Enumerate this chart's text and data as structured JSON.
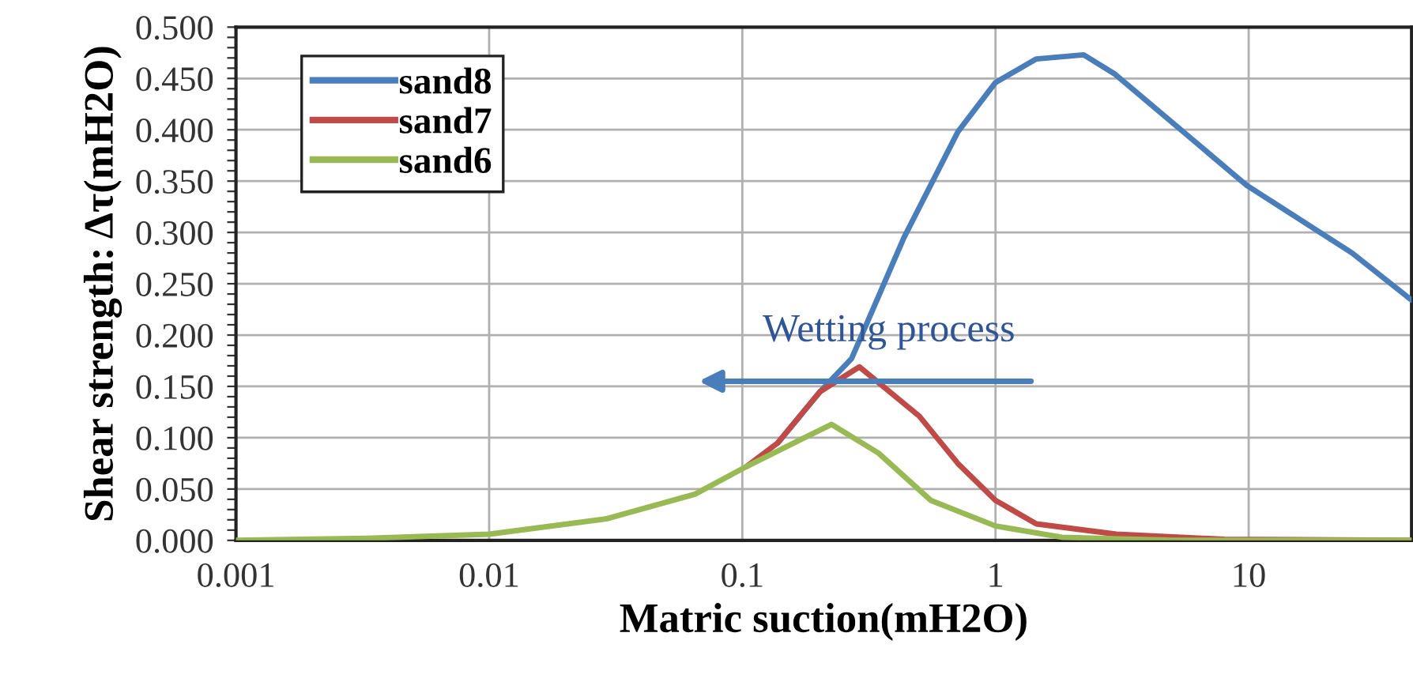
{
  "chart_data": {
    "type": "line",
    "xlabel": "Matric suction(mH2O)",
    "ylabel": "Shear strength: Δτ(mH2O)",
    "log": "x",
    "xlim": [
      0.001,
      44
    ],
    "xticks": [
      0.001,
      0.01,
      0.1,
      1,
      10
    ],
    "ylim": [
      0,
      0.5
    ],
    "yticks": [
      {
        "value": 0,
        "label": "0.000"
      },
      {
        "value": 0.01,
        "label": null
      },
      {
        "value": 0.02,
        "label": null
      },
      {
        "value": 0.03,
        "label": null
      },
      {
        "value": 0.04,
        "label": null
      },
      {
        "value": 0.05,
        "label": "0.050"
      },
      {
        "value": 0.06,
        "label": null
      },
      {
        "value": 0.07,
        "label": null
      },
      {
        "value": 0.08,
        "label": null
      },
      {
        "value": 0.09,
        "label": null
      },
      {
        "value": 0.1,
        "label": "0.100"
      },
      {
        "value": 0.11,
        "label": null
      },
      {
        "value": 0.12,
        "label": null
      },
      {
        "value": 0.13,
        "label": null
      },
      {
        "value": 0.14,
        "label": null
      },
      {
        "value": 0.15,
        "label": "0.150"
      },
      {
        "value": 0.16,
        "label": null
      },
      {
        "value": 0.17,
        "label": null
      },
      {
        "value": 0.18,
        "label": null
      },
      {
        "value": 0.19,
        "label": null
      },
      {
        "value": 0.2,
        "label": "0.200"
      },
      {
        "value": 0.21,
        "label": null
      },
      {
        "value": 0.22,
        "label": null
      },
      {
        "value": 0.23,
        "label": null
      },
      {
        "value": 0.24,
        "label": null
      },
      {
        "value": 0.25,
        "label": "0.250"
      },
      {
        "value": 0.26,
        "label": null
      },
      {
        "value": 0.27,
        "label": null
      },
      {
        "value": 0.28,
        "label": null
      },
      {
        "value": 0.29,
        "label": null
      },
      {
        "value": 0.3,
        "label": "0.300"
      },
      {
        "value": 0.31,
        "label": null
      },
      {
        "value": 0.32,
        "label": null
      },
      {
        "value": 0.33,
        "label": null
      },
      {
        "value": 0.34,
        "label": null
      },
      {
        "value": 0.35,
        "label": "0.350"
      },
      {
        "value": 0.36,
        "label": null
      },
      {
        "value": 0.37,
        "label": null
      },
      {
        "value": 0.38,
        "label": null
      },
      {
        "value": 0.39,
        "label": null
      },
      {
        "value": 0.4,
        "label": "0.400"
      },
      {
        "value": 0.41,
        "label": null
      },
      {
        "value": 0.42,
        "label": null
      },
      {
        "value": 0.43,
        "label": null
      },
      {
        "value": 0.44,
        "label": null
      },
      {
        "value": 0.45,
        "label": "0.450"
      },
      {
        "value": 0.46,
        "label": null
      },
      {
        "value": 0.47,
        "label": null
      },
      {
        "value": 0.48,
        "label": null
      },
      {
        "value": 0.49,
        "label": null
      },
      {
        "value": 0.5,
        "label": "0.500"
      }
    ],
    "grid": true,
    "legend": "top left",
    "marker": "none",
    "line_style": "solid",
    "annotations": [
      "Wetting process"
    ],
    "series": [
      {
        "name": "sand8",
        "color": "#4a7ebb",
        "x": [
          0.138,
          0.203,
          0.27,
          0.435,
          0.71,
          1.0,
          1.45,
          2.23,
          2.97,
          9.8,
          25.6,
          44
        ],
        "values": [
          0.095,
          0.145,
          0.177,
          0.295,
          0.398,
          0.446,
          0.469,
          0.473,
          0.454,
          0.346,
          0.28,
          0.234
        ]
      },
      {
        "name": "sand7",
        "color": "#be4b48",
        "x": [
          0.104,
          0.138,
          0.203,
          0.29,
          0.5,
          0.71,
          1.0,
          1.45,
          3.0,
          8.0,
          44
        ],
        "values": [
          0.072,
          0.095,
          0.145,
          0.169,
          0.121,
          0.075,
          0.039,
          0.016,
          0.006,
          0.001,
          0.0
        ]
      },
      {
        "name": "sand6",
        "color": "#98b954",
        "x": [
          0.001,
          0.0033,
          0.01,
          0.029,
          0.065,
          0.104,
          0.225,
          0.345,
          0.555,
          1.0,
          1.83,
          5.0,
          44
        ],
        "values": [
          0.0,
          0.002,
          0.006,
          0.021,
          0.045,
          0.072,
          0.113,
          0.085,
          0.039,
          0.014,
          0.003,
          0.0,
          0.0
        ]
      }
    ]
  }
}
